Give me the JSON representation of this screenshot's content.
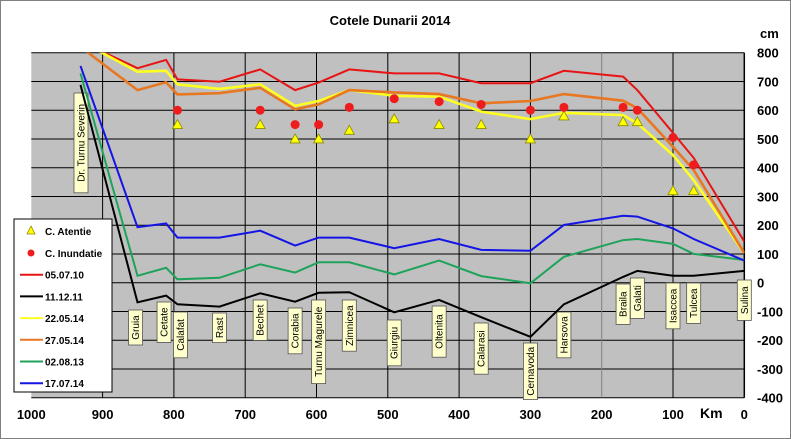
{
  "chart_data": {
    "type": "line",
    "title": "Cotele Dunarii 2014",
    "ylabel": "cm",
    "xlabel": "Km",
    "xlim": [
      1000,
      0
    ],
    "ylim": [
      -400,
      800
    ],
    "x_ticks": [
      "1000",
      "900",
      "800",
      "700",
      "600",
      "500",
      "400",
      "300",
      "200",
      "100",
      "0"
    ],
    "y_ticks": [
      "800",
      "700",
      "600",
      "500",
      "400",
      "300",
      "200",
      "100",
      "0",
      "-100",
      "-200",
      "-300",
      "-400"
    ],
    "grid": true,
    "legend_position": "bottom-left",
    "plot_background": "#c0c0c0",
    "stations": [
      {
        "name": "Dr. Turnu Severin",
        "km": 931
      },
      {
        "name": "Gruia",
        "km": 851
      },
      {
        "name": "Cetate",
        "km": 811
      },
      {
        "name": "Calafat",
        "km": 795
      },
      {
        "name": "Rast",
        "km": 736
      },
      {
        "name": "Bechet",
        "km": 679
      },
      {
        "name": "Corabia",
        "km": 630
      },
      {
        "name": "Turnu Magurele",
        "km": 597
      },
      {
        "name": "Zimnicea",
        "km": 554
      },
      {
        "name": "Giurgiu",
        "km": 491
      },
      {
        "name": "Oltenita",
        "km": 428
      },
      {
        "name": "Calarasi",
        "km": 369
      },
      {
        "name": "Cernavoda",
        "km": 300
      },
      {
        "name": "Harsova",
        "km": 253
      },
      {
        "name": "Braila",
        "km": 170
      },
      {
        "name": "Galati",
        "km": 150
      },
      {
        "name": "Isaccea",
        "km": 100
      },
      {
        "name": "Tulcea",
        "km": 71
      },
      {
        "name": "Sulina",
        "km": 0
      }
    ],
    "markers": [
      {
        "name": "C. Atentie",
        "shape": "triangle",
        "color": "#ffff00",
        "x": [
          795,
          679,
          630,
          597,
          554,
          491,
          428,
          369,
          300,
          253,
          170,
          150,
          100,
          71
        ],
        "y": [
          550,
          550,
          500,
          500,
          530,
          570,
          550,
          550,
          500,
          580,
          560,
          560,
          320,
          320
        ]
      },
      {
        "name": "C. Inundatie",
        "shape": "circle",
        "color": "#ee1c1c",
        "x": [
          795,
          679,
          630,
          597,
          554,
          491,
          428,
          369,
          300,
          253,
          170,
          150,
          100,
          71
        ],
        "y": [
          600,
          600,
          550,
          550,
          610,
          640,
          630,
          620,
          600,
          610,
          610,
          600,
          505,
          410
        ]
      }
    ],
    "x": [
      931,
      851,
      811,
      795,
      736,
      679,
      630,
      597,
      554,
      491,
      428,
      369,
      300,
      253,
      170,
      150,
      100,
      71,
      0
    ],
    "series": [
      {
        "name": "05.07.10",
        "color": "#e81414",
        "values": [
          840,
          746,
          775,
          707,
          699,
          742,
          670,
          696,
          742,
          728,
          728,
          694,
          694,
          737,
          717,
          670,
          521,
          434,
          143
        ]
      },
      {
        "name": "11.12.11",
        "color": "#000000",
        "values": [
          688,
          -68,
          -45,
          -75,
          -83,
          -37,
          -66,
          -35,
          -33,
          -103,
          -60,
          -120,
          -188,
          -75,
          20,
          41,
          24,
          24,
          41
        ]
      },
      {
        "name": "22.05.14",
        "color": "#ffff20",
        "values": [
          840,
          734,
          737,
          690,
          674,
          690,
          615,
          632,
          670,
          650,
          647,
          595,
          569,
          591,
          583,
          554,
          444,
          357,
          103
        ]
      },
      {
        "name": "27.05.14",
        "color": "#e87722",
        "values": [
          820,
          670,
          697,
          655,
          659,
          678,
          603,
          620,
          670,
          662,
          656,
          624,
          632,
          656,
          633,
          607,
          473,
          392,
          103
        ]
      },
      {
        "name": "02.08.13",
        "color": "#1fa35a",
        "values": [
          728,
          24,
          52,
          12,
          17,
          64,
          35,
          71,
          71,
          29,
          77,
          23,
          -2,
          90,
          148,
          152,
          135,
          100,
          79
        ]
      },
      {
        "name": "17.07.14",
        "color": "#1414e6",
        "values": [
          754,
          193,
          206,
          157,
          157,
          181,
          129,
          157,
          157,
          120,
          152,
          114,
          111,
          201,
          233,
          230,
          189,
          152,
          77
        ]
      }
    ]
  }
}
